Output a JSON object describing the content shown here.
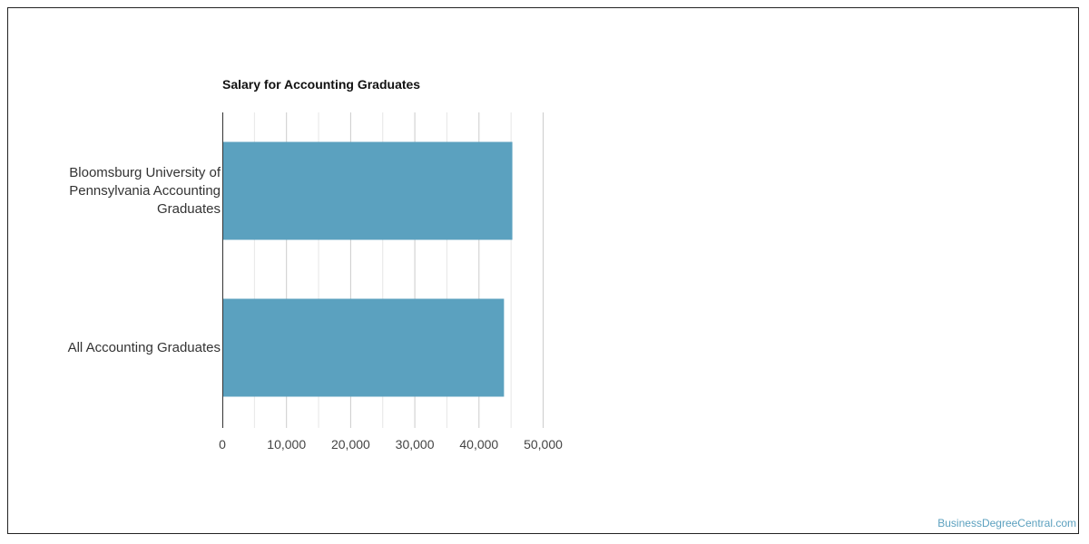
{
  "chart_data": {
    "type": "bar",
    "orientation": "horizontal",
    "title": "Salary for Accounting Graduates",
    "categories": [
      "Bloomsburg University of\nPennsylvania Accounting\nGraduates",
      "All Accounting Graduates"
    ],
    "values": [
      45200,
      43900
    ],
    "xlim": [
      0,
      55000
    ],
    "x_ticks": [
      0,
      10000,
      20000,
      30000,
      40000,
      50000
    ],
    "x_tick_labels": [
      "0",
      "10,000",
      "20,000",
      "30,000",
      "40,000",
      "50,000"
    ],
    "grid": true,
    "bar_color": "#5ba1bf"
  },
  "watermark": "BusinessDegreeCentral.com"
}
